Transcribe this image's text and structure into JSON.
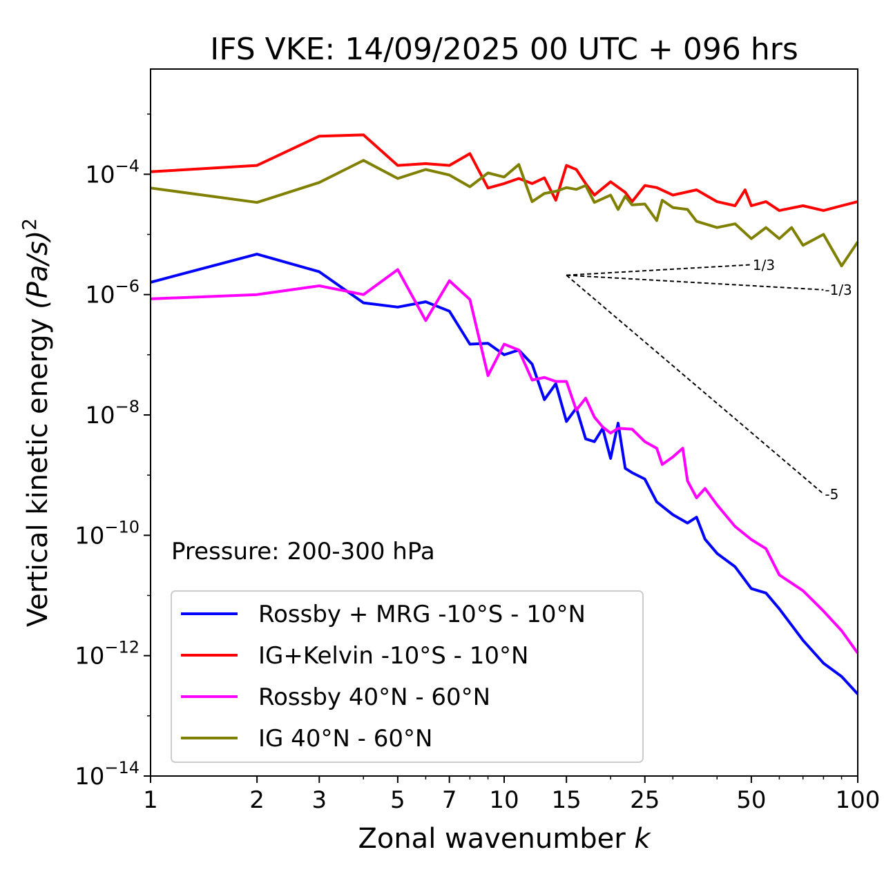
{
  "chart_data": {
    "type": "line",
    "title": "IFS VKE: 14/09/2025 00 UTC + 096 hrs",
    "xlabel": "Zonal wavenumber k",
    "xlabel_main": "Zonal wavenumber ",
    "xlabel_italic": "k",
    "ylabel": "Vertical kinetic energy (Pa/s)^2",
    "ylabel_main": "Vertical kinetic energy ",
    "ylabel_italic": "(Pa/s)",
    "ylabel_sup": "2",
    "xscale": "log",
    "yscale": "log",
    "xlim": [
      1,
      100
    ],
    "ylim": [
      1e-14,
      0.0056
    ],
    "xticks": [
      1,
      2,
      3,
      5,
      7,
      10,
      15,
      25,
      50,
      100
    ],
    "xtick_labels": [
      "1",
      "2",
      "3",
      "5",
      "7",
      "10",
      "15",
      "25",
      "50",
      "100"
    ],
    "yticks": [
      1e-14,
      1e-12,
      1e-10,
      1e-08,
      1e-06,
      0.0001
    ],
    "ytick_exponents": [
      "−14",
      "−12",
      "−10",
      "−8",
      "−6",
      "−4"
    ],
    "ytick_base": "10",
    "annotation": "Pressure: 200-300 hPa",
    "legend_position": "lower-left",
    "series": [
      {
        "name": "Rossby + MRG -10°S - 10°N",
        "color": "#0000ff",
        "x": [
          1,
          2,
          3,
          4,
          5,
          6,
          7,
          8,
          9,
          10,
          11,
          12,
          13,
          14,
          15,
          16,
          17,
          18,
          19,
          20,
          21,
          22,
          23,
          25,
          27,
          30,
          33,
          35,
          37,
          40,
          45,
          50,
          55,
          60,
          70,
          80,
          90,
          100
        ],
        "y": [
          1.6e-06,
          4.7e-06,
          2.4e-06,
          7.3e-07,
          6.2e-07,
          7.6e-07,
          5.3e-07,
          1.5e-07,
          1.55e-07,
          1e-07,
          1.2e-07,
          7e-08,
          1.8e-08,
          3.3e-08,
          7.8e-09,
          1.3e-08,
          4e-09,
          3.6e-09,
          6e-09,
          1.9e-09,
          7.3e-09,
          1.3e-09,
          1.1e-09,
          8.6e-10,
          3.6e-10,
          2.2e-10,
          1.6e-10,
          2e-10,
          8.6e-11,
          5e-11,
          3e-11,
          1.3e-11,
          1.1e-11,
          6e-12,
          1.8e-12,
          7.5e-13,
          4.5e-13,
          2.3e-13
        ]
      },
      {
        "name": "IG+Kelvin -10°S - 10°N",
        "color": "#ff0000",
        "x": [
          1,
          2,
          3,
          4,
          5,
          6,
          7,
          8,
          9,
          10,
          11,
          12,
          13,
          14,
          15,
          16,
          17,
          18,
          20,
          22,
          23,
          25,
          27,
          30,
          35,
          40,
          45,
          48,
          50,
          55,
          60,
          70,
          80,
          90,
          100
        ],
        "y": [
          0.00011,
          0.00014,
          0.00043,
          0.00045,
          0.00014,
          0.00015,
          0.00014,
          0.00022,
          5.9e-05,
          7e-05,
          8.5e-05,
          7e-05,
          8.7e-05,
          3.7e-05,
          0.00014,
          0.00012,
          7e-05,
          4.5e-05,
          7.5e-05,
          5e-05,
          3.5e-05,
          6.5e-05,
          6e-05,
          4.5e-05,
          5.5e-05,
          3.5e-05,
          3e-05,
          5.5e-05,
          3e-05,
          3.5e-05,
          2.5e-05,
          3e-05,
          2.5e-05,
          3e-05,
          3.5e-05
        ]
      },
      {
        "name": "Rossby 40°N - 60°N",
        "color": "#ff00ff",
        "x": [
          1,
          2,
          3,
          4,
          5,
          6,
          7,
          8,
          9,
          10,
          11,
          12,
          13,
          14,
          15,
          16,
          17,
          18,
          19,
          20,
          21,
          23,
          25,
          27,
          28,
          30,
          32,
          33,
          35,
          37,
          40,
          45,
          50,
          55,
          60,
          70,
          80,
          90,
          100
        ],
        "y": [
          8.5e-07,
          1e-06,
          1.4e-06,
          1e-06,
          2.6e-06,
          3.7e-07,
          1.7e-06,
          8.3e-07,
          4.5e-08,
          1.5e-07,
          1.2e-07,
          3.8e-08,
          4.2e-08,
          3.6e-08,
          3.6e-08,
          1.2e-08,
          1.9e-08,
          9.2e-09,
          6.3e-09,
          5e-09,
          6e-09,
          5.8e-09,
          3.6e-09,
          2.8e-09,
          1.5e-09,
          2e-09,
          2.8e-09,
          8e-10,
          4.2e-10,
          6e-10,
          3.2e-10,
          1.4e-10,
          8.5e-11,
          6e-11,
          2.2e-11,
          1.2e-11,
          5.5e-12,
          2.6e-12,
          1.1e-12
        ]
      },
      {
        "name": "IG 40°N - 60°N",
        "color": "#808000",
        "x": [
          1,
          2,
          3,
          4,
          5,
          6,
          7,
          8,
          9,
          10,
          11,
          12,
          13,
          14,
          15,
          16,
          17,
          18,
          20,
          21,
          22,
          23,
          25,
          27,
          28,
          30,
          33,
          35,
          40,
          45,
          50,
          55,
          60,
          65,
          70,
          80,
          90,
          100
        ],
        "y": [
          5.9e-05,
          3.4e-05,
          7.3e-05,
          0.00017,
          8.5e-05,
          0.00012,
          9.7e-05,
          6.2e-05,
          0.000105,
          9e-05,
          0.000145,
          3.5e-05,
          4.8e-05,
          5.2e-05,
          6e-05,
          5.6e-05,
          6.5e-05,
          3.4e-05,
          4.5e-05,
          2.6e-05,
          4.3e-05,
          3.1e-05,
          3.2e-05,
          1.7e-05,
          3.7e-05,
          2.8e-05,
          2.6e-05,
          1.65e-05,
          1.3e-05,
          1.5e-05,
          8.5e-06,
          1.3e-05,
          8.5e-06,
          1.3e-05,
          6.6e-06,
          1e-05,
          3e-06,
          7.5e-06
        ]
      }
    ],
    "reference_lines": [
      {
        "label": "1/3",
        "slope": 0.3333,
        "x0": 15,
        "y0": 2.1e-06,
        "x1": 50
      },
      {
        "label": "-1/3",
        "slope": -0.3333,
        "x0": 15,
        "y0": 2.1e-06,
        "x1": 80
      },
      {
        "label": "-5",
        "slope": -5,
        "x0": 15,
        "y0": 2.1e-06,
        "x1": 80
      }
    ]
  }
}
